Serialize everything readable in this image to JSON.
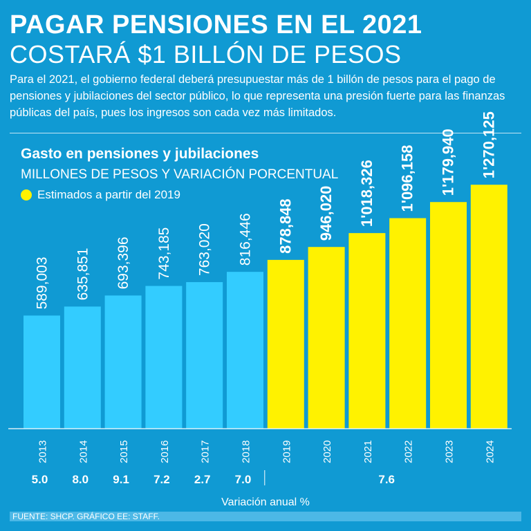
{
  "header": {
    "title_line1": "PAGAR PENSIONES EN EL 2021",
    "title_line2": "COSTARÁ $1 BILLÓN DE PESOS",
    "intro": "Para el 2021, el gobierno federal deberá presupuestar más de 1 billón de pesos para el pago de pensiones y jubilaciones del sector público, lo que representa una presión fuerte para las finanzas públicas del país, pues los ingresos son cada vez más limitados."
  },
  "legend": {
    "label": "Estimados a partir del 2019"
  },
  "footer": {
    "source": "FUENTE: SHCP. GRÁFICO EE: STAFF."
  },
  "colors": {
    "background": "#109ad3",
    "actual_bar": "#33ccff",
    "estimated_bar": "#fff200"
  },
  "chart_data": {
    "type": "bar",
    "title": "Gasto en pensiones y jubilaciones",
    "subtitle": "MILLONES DE PESOS Y VARIACIÓN PORCENTUAL",
    "xlabel": "Variación anual %",
    "ylabel": "",
    "categories": [
      "2013",
      "2014",
      "2015",
      "2016",
      "2017",
      "2018",
      "2019",
      "2020",
      "2021",
      "2022",
      "2023",
      "2024"
    ],
    "values": [
      589003,
      635851,
      693396,
      743185,
      763020,
      816446,
      878848,
      946020,
      1018326,
      1096158,
      1179940,
      1270125
    ],
    "value_labels": [
      "589,003",
      "635,851",
      "693,396",
      "743,185",
      "763,020",
      "816,446",
      "878,848",
      "946,020",
      "1'018,326",
      "1'096,158",
      "1'179,940",
      "1'270,125"
    ],
    "estimated": [
      false,
      false,
      false,
      false,
      false,
      false,
      true,
      true,
      true,
      true,
      true,
      true
    ],
    "variation_actual": [
      "5.0",
      "8.0",
      "9.1",
      "7.2",
      "2.7",
      "7.0"
    ],
    "variation_estimated": "7.6",
    "ylim": [
      0,
      2700000
    ]
  }
}
